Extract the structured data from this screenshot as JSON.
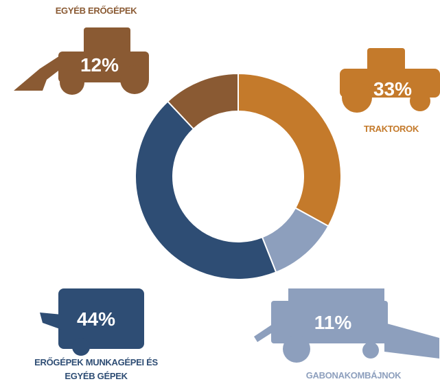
{
  "chart_data": {
    "type": "pie",
    "donut": true,
    "categories": [
      "TRAKTOROK",
      "GABONAKOMBÁJNOK",
      "ERŐGÉPEK MUNKAGÉPEI ÉS EGYÉB GÉPEK",
      "EGYÉB ERŐGÉPEK"
    ],
    "values": [
      33,
      11,
      44,
      12
    ],
    "value_labels": [
      "33%",
      "11%",
      "44%",
      "12%"
    ],
    "colors": [
      "#c47a2b",
      "#8d9fbd",
      "#2e4d74",
      "#8a5a33"
    ]
  }
}
